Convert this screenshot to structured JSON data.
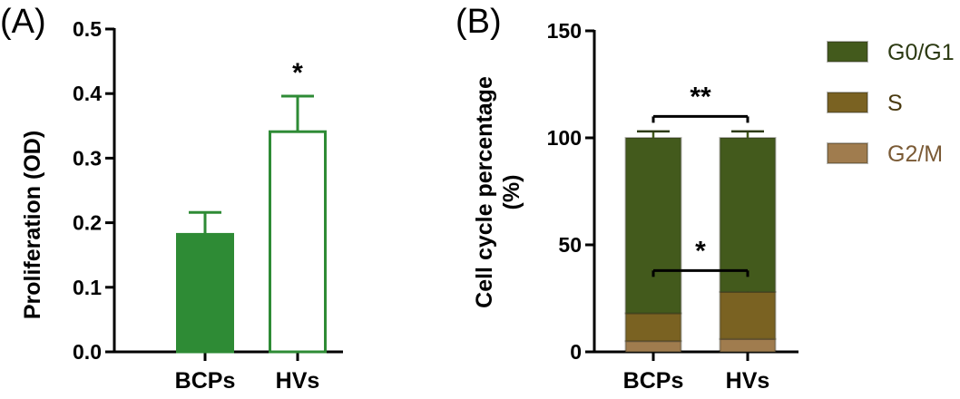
{
  "chart_data": [
    {
      "type": "bar",
      "panel_label": "(A)",
      "ylabel": "Proliferation (OD)",
      "categories": [
        "BCPs",
        "HVs"
      ],
      "values": [
        0.182,
        0.341
      ],
      "errors": [
        0.034,
        0.055
      ],
      "ylim": [
        0,
        0.5
      ],
      "yticks": [
        0.0,
        0.1,
        0.2,
        0.3,
        0.4,
        0.5
      ],
      "ytick_labels": [
        "0.0",
        "0.1",
        "0.2",
        "0.3",
        "0.4",
        "0.5"
      ],
      "significance": [
        "",
        "*"
      ],
      "colors": {
        "BCPs": "#2e8b35",
        "HVs": "#ffffff",
        "outline": "#2e8b35"
      }
    },
    {
      "type": "bar",
      "stacked": true,
      "panel_label": "(B)",
      "ylabel_line1": "Cell cycle percentage",
      "ylabel_line2": "(%)",
      "categories": [
        "BCPs",
        "HVs"
      ],
      "ylim": [
        0,
        150
      ],
      "yticks": [
        0,
        50,
        100,
        150
      ],
      "ytick_labels": [
        "0",
        "50",
        "100",
        "150"
      ],
      "series": [
        {
          "name": "G2/M",
          "values": [
            5,
            6
          ],
          "errors": [
            0,
            0
          ],
          "color": "#a07c4e",
          "text_color": "#7a5a35"
        },
        {
          "name": "S",
          "values": [
            13,
            22
          ],
          "errors": [
            3,
            3.5
          ],
          "color": "#7a6222",
          "text_color": "#4a3a10"
        },
        {
          "name": "G0/G1",
          "values": [
            82,
            72
          ],
          "errors": [
            3,
            3
          ],
          "color": "#435a1c",
          "text_color": "#2c3a12"
        }
      ],
      "legend_order": [
        "G0/G1",
        "S",
        "G2/M"
      ],
      "legend_position": "top-right",
      "annotations": [
        {
          "label": "**",
          "y_level": 110
        },
        {
          "label": "*",
          "y_level": 38
        }
      ]
    }
  ]
}
